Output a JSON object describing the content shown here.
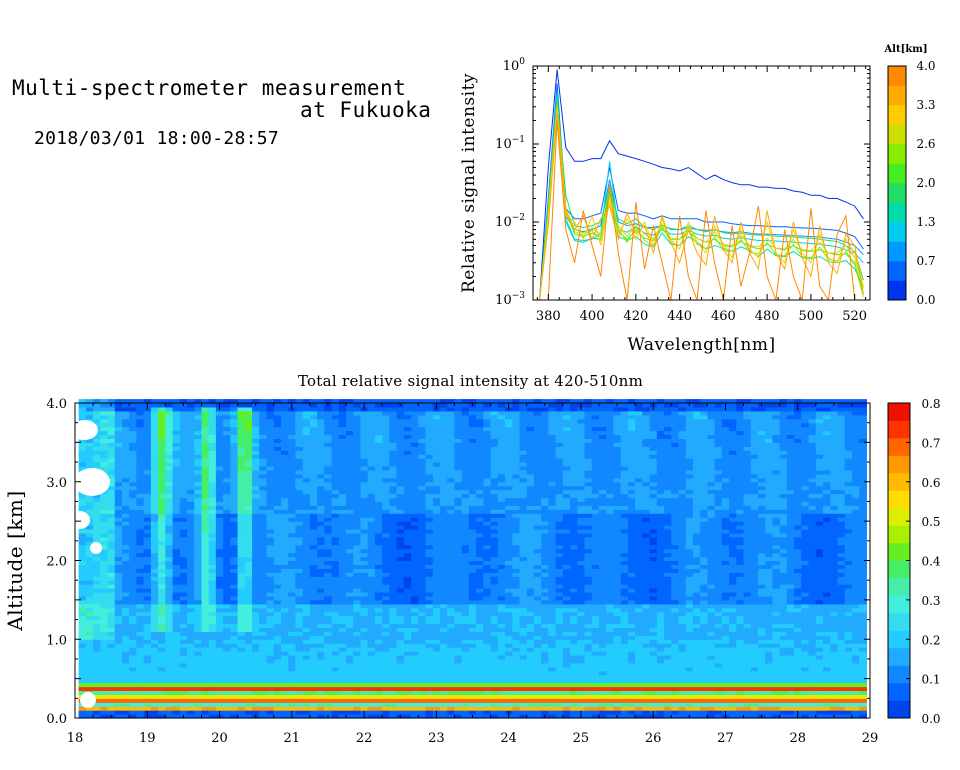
{
  "header": {
    "title_line1": "Multi-spectrometer measurement",
    "title_line2": "at Fukuoka",
    "date_range": "2018/03/01 18:00-28:57"
  },
  "chart_data": [
    {
      "type": "line",
      "xlabel": "Wavelength[nm]",
      "ylabel": "Relative signal intensity",
      "y_scale": "log",
      "xlim": [
        373,
        527
      ],
      "ylim": [
        0.001,
        1
      ],
      "x_ticks": [
        380,
        400,
        420,
        440,
        460,
        480,
        500,
        520
      ],
      "y_ticks": [
        {
          "value": 1,
          "base": "10",
          "exp": "0"
        },
        {
          "value": 0.1,
          "base": "10",
          "exp": "−1"
        },
        {
          "value": 0.01,
          "base": "10",
          "exp": "−2"
        },
        {
          "value": 0.001,
          "base": "10",
          "exp": "−3"
        }
      ],
      "colorbar": {
        "title": "Alt[km]",
        "min": 0.0,
        "max": 4.0,
        "tick_labels": [
          "4.0",
          "3.3",
          "2.6",
          "2.0",
          "1.3",
          "0.7",
          "0.0"
        ],
        "colors": [
          "#0033ee",
          "#0066ff",
          "#0099ff",
          "#00ccee",
          "#00ddaa",
          "#22dd66",
          "#44ee22",
          "#88ee00",
          "#ccdd00",
          "#ffcc00",
          "#ffaa00",
          "#ff8800"
        ]
      },
      "x": [
        376,
        380,
        384,
        388,
        392,
        396,
        400,
        404,
        408,
        412,
        416,
        420,
        424,
        428,
        432,
        436,
        440,
        444,
        448,
        452,
        456,
        460,
        464,
        468,
        472,
        476,
        480,
        484,
        488,
        492,
        496,
        500,
        504,
        508,
        512,
        516,
        520,
        524
      ],
      "series": [
        {
          "alt": 0.0,
          "color": "#0033ee",
          "values": [
            0.001,
            0.05,
            0.9,
            0.09,
            0.06,
            0.06,
            0.065,
            0.065,
            0.11,
            0.075,
            0.07,
            0.065,
            0.06,
            0.055,
            0.05,
            0.048,
            0.045,
            0.05,
            0.042,
            0.035,
            0.04,
            0.035,
            0.032,
            0.03,
            0.03,
            0.028,
            0.028,
            0.027,
            0.027,
            0.025,
            0.024,
            0.022,
            0.022,
            0.02,
            0.02,
            0.018,
            0.016,
            0.011
          ]
        },
        {
          "alt": 0.3,
          "color": "#0066ff",
          "values": [
            0.001,
            0.02,
            0.6,
            0.015,
            0.011,
            0.011,
            0.012,
            0.013,
            0.05,
            0.014,
            0.013,
            0.013,
            0.012,
            0.011,
            0.012,
            0.011,
            0.011,
            0.011,
            0.011,
            0.01,
            0.01,
            0.01,
            0.0095,
            0.0092,
            0.009,
            0.009,
            0.0088,
            0.0087,
            0.0087,
            0.0085,
            0.0084,
            0.0083,
            0.0082,
            0.008,
            0.0078,
            0.0072,
            0.0065,
            0.0045
          ]
        },
        {
          "alt": 0.7,
          "color": "#0099ff",
          "values": [
            0.001,
            0.018,
            0.5,
            0.012,
            0.008,
            0.0075,
            0.008,
            0.009,
            0.035,
            0.01,
            0.009,
            0.0095,
            0.0085,
            0.0085,
            0.009,
            0.0082,
            0.008,
            0.0085,
            0.008,
            0.0078,
            0.0079,
            0.0075,
            0.0073,
            0.0075,
            0.0072,
            0.007,
            0.007,
            0.0069,
            0.0068,
            0.0067,
            0.0066,
            0.0065,
            0.0064,
            0.0062,
            0.006,
            0.0055,
            0.005,
            0.0038
          ]
        },
        {
          "alt": 1.0,
          "color": "#00ccee",
          "values": [
            0.001,
            0.017,
            0.45,
            0.011,
            0.006,
            0.0058,
            0.006,
            0.0072,
            0.06,
            0.008,
            0.0074,
            0.0085,
            0.0072,
            0.0068,
            0.008,
            0.007,
            0.007,
            0.0078,
            0.007,
            0.0066,
            0.0068,
            0.0062,
            0.006,
            0.0063,
            0.006,
            0.0058,
            0.0058,
            0.0057,
            0.0056,
            0.0055,
            0.0054,
            0.0053,
            0.0052,
            0.005,
            0.0048,
            0.0044,
            0.004,
            0.003
          ]
        },
        {
          "alt": 1.3,
          "color": "#00ddaa",
          "values": [
            0.001,
            0.016,
            0.4,
            0.01,
            0.0058,
            0.0055,
            0.0062,
            0.006,
            0.025,
            0.0065,
            0.0058,
            0.0065,
            0.0052,
            0.0048,
            0.0072,
            0.0052,
            0.005,
            0.0065,
            0.0055,
            0.0045,
            0.005,
            0.0046,
            0.0042,
            0.0048,
            0.0043,
            0.0036,
            0.0045,
            0.0037,
            0.0036,
            0.0042,
            0.0035,
            0.0034,
            0.0036,
            0.0031,
            0.003,
            0.0032,
            0.0025,
            0.0015
          ]
        },
        {
          "alt": 1.6,
          "color": "#22dd66",
          "values": [
            0.001,
            0.015,
            0.38,
            0.022,
            0.009,
            0.0085,
            0.009,
            0.01,
            0.028,
            0.011,
            0.0095,
            0.011,
            0.0085,
            0.008,
            0.0092,
            0.008,
            0.008,
            0.009,
            0.008,
            0.0075,
            0.008,
            0.0073,
            0.007,
            0.0072,
            0.0069,
            0.0068,
            0.0068,
            0.0066,
            0.0065,
            0.0064,
            0.0063,
            0.0062,
            0.006,
            0.0058,
            0.0056,
            0.005,
            0.0042,
            0.0018
          ]
        },
        {
          "alt": 2.0,
          "color": "#44ee22",
          "values": [
            0.001,
            0.014,
            0.35,
            0.014,
            0.007,
            0.0065,
            0.0072,
            0.0065,
            0.03,
            0.0075,
            0.006,
            0.0078,
            0.0062,
            0.0058,
            0.0082,
            0.006,
            0.006,
            0.0075,
            0.0062,
            0.0055,
            0.006,
            0.005,
            0.0048,
            0.0056,
            0.0049,
            0.0045,
            0.0052,
            0.0046,
            0.0044,
            0.005,
            0.0043,
            0.0042,
            0.0044,
            0.004,
            0.0038,
            0.0039,
            0.003,
            0.0012
          ]
        },
        {
          "alt": 2.3,
          "color": "#88ee00",
          "values": [
            0.001,
            0.013,
            0.32,
            0.013,
            0.0075,
            0.0068,
            0.0078,
            0.0058,
            0.022,
            0.0082,
            0.0055,
            0.0085,
            0.0058,
            0.005,
            0.0088,
            0.0055,
            0.005,
            0.0078,
            0.0052,
            0.0045,
            0.0065,
            0.0043,
            0.0042,
            0.006,
            0.0041,
            0.0039,
            0.0055,
            0.0038,
            0.0037,
            0.0052,
            0.0036,
            0.0035,
            0.0048,
            0.0033,
            0.0032,
            0.0042,
            0.0028,
            0.0011
          ]
        },
        {
          "alt": 2.6,
          "color": "#ccdd00",
          "values": [
            0.001,
            0.012,
            0.3,
            0.015,
            0.008,
            0.0072,
            0.0085,
            0.007,
            0.02,
            0.009,
            0.0065,
            0.009,
            0.007,
            0.006,
            0.0095,
            0.0062,
            0.006,
            0.0085,
            0.0062,
            0.0055,
            0.0075,
            0.0052,
            0.005,
            0.0068,
            0.005,
            0.0048,
            0.0062,
            0.0046,
            0.0045,
            0.006,
            0.0044,
            0.0043,
            0.0055,
            0.004,
            0.004,
            0.005,
            0.0035,
            0.0014
          ]
        },
        {
          "alt": 3.0,
          "color": "#ffcc00",
          "values": [
            0.001,
            0.01,
            0.28,
            0.012,
            0.01,
            0.006,
            0.012,
            0.005,
            0.018,
            0.007,
            0.011,
            0.006,
            0.01,
            0.005,
            0.011,
            0.006,
            0.0045,
            0.01,
            0.0055,
            0.004,
            0.009,
            0.005,
            0.0035,
            0.008,
            0.0045,
            0.0035,
            0.01,
            0.004,
            0.003,
            0.008,
            0.004,
            0.003,
            0.007,
            0.0035,
            0.003,
            0.006,
            0.004,
            0.0015
          ]
        },
        {
          "alt": 3.5,
          "color": "#ffaa00",
          "values": [
            0.001,
            0.009,
            0.25,
            0.014,
            0.008,
            0.012,
            0.006,
            0.011,
            0.016,
            0.006,
            0.013,
            0.007,
            0.009,
            0.004,
            0.012,
            0.0055,
            0.003,
            0.008,
            0.004,
            0.0028,
            0.012,
            0.0045,
            0.003,
            0.01,
            0.004,
            0.0025,
            0.014,
            0.004,
            0.0025,
            0.01,
            0.0035,
            0.002,
            0.009,
            0.003,
            0.0022,
            0.007,
            0.005,
            0.0012
          ]
        },
        {
          "alt": 4.0,
          "color": "#ff8800",
          "values": [
            0.001,
            0.001,
            0.2,
            0.008,
            0.003,
            0.014,
            0.005,
            0.002,
            0.03,
            0.004,
            0.001,
            0.018,
            0.0025,
            0.009,
            0.003,
            0.001,
            0.012,
            0.002,
            0.001,
            0.014,
            0.003,
            0.001,
            0.009,
            0.0015,
            0.004,
            0.016,
            0.002,
            0.001,
            0.008,
            0.002,
            0.001,
            0.015,
            0.0015,
            0.001,
            0.007,
            0.012,
            0.001,
            0.001
          ]
        }
      ]
    },
    {
      "type": "heatmap",
      "title": "Total relative signal intensity at 420-510nm",
      "xlabel": "",
      "ylabel": "Altitude [km]",
      "xlim": [
        18,
        29
      ],
      "ylim": [
        0.0,
        4.0
      ],
      "x_ticks": [
        "18",
        "19",
        "20",
        "21",
        "22",
        "23",
        "24",
        "25",
        "26",
        "27",
        "28",
        "29"
      ],
      "y_ticks": [
        "0.0",
        "1.0",
        "2.0",
        "3.0",
        "4.0"
      ],
      "data_end_hour": 28.95,
      "colorbar": {
        "min": 0.0,
        "max": 0.8,
        "tick_labels": [
          "0.8",
          "0.7",
          "0.6",
          "0.5",
          "0.4",
          "0.3",
          "0.2",
          "0.1",
          "0.0"
        ],
        "colors": [
          "#0044ee",
          "#0066ff",
          "#1188ff",
          "#22aaff",
          "#22ccff",
          "#33ddee",
          "#44eedd",
          "#44eeaa",
          "#44ee66",
          "#66ee22",
          "#aaee00",
          "#ddee00",
          "#ffdd00",
          "#ffbb00",
          "#ff9900",
          "#ff6600",
          "#ff3300",
          "#ee1100"
        ]
      }
    }
  ]
}
